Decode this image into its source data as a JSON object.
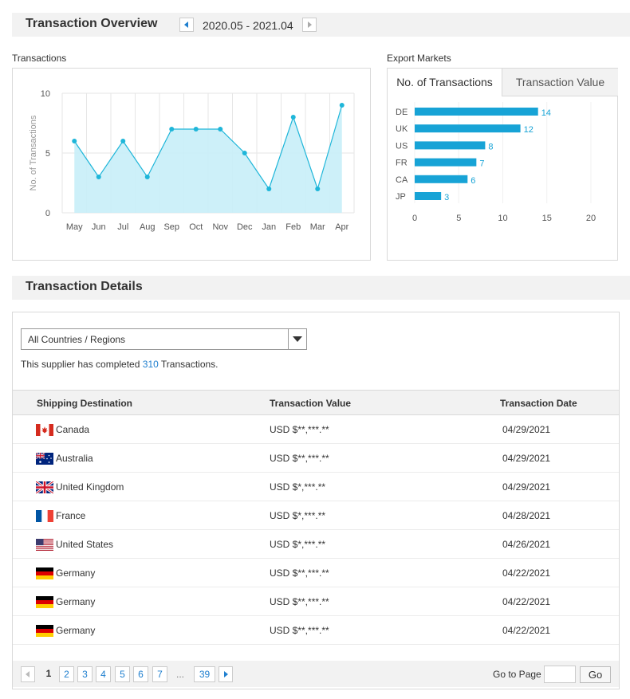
{
  "overview": {
    "title": "Transaction Overview",
    "period": "2020.05 - 2021.04"
  },
  "transactions_panel": {
    "label": "Transactions"
  },
  "export_panel": {
    "label": "Export Markets",
    "tabs": [
      "No. of Transactions",
      "Transaction Value"
    ],
    "active_tab": "No. of Transactions"
  },
  "colors": {
    "accent": "#1f9fcf",
    "area_fill": "#c8eef8",
    "line": "#1fb6d9",
    "bar": "#17a3d6",
    "link": "#1f7fcf"
  },
  "chart_data": [
    {
      "type": "area",
      "categories": [
        "May",
        "Jun",
        "Jul",
        "Aug",
        "Sep",
        "Oct",
        "Nov",
        "Dec",
        "Jan",
        "Feb",
        "Mar",
        "Apr"
      ],
      "values": [
        6,
        3,
        6,
        3,
        7,
        7,
        7,
        5,
        2,
        8,
        2,
        9
      ],
      "ylabel": "No. of Transactions",
      "ylim": [
        0,
        10
      ],
      "yticks": [
        "0",
        "5",
        "10"
      ],
      "grid": true
    },
    {
      "type": "bar",
      "orientation": "horizontal",
      "categories": [
        "DE",
        "UK",
        "US",
        "FR",
        "CA",
        "JP"
      ],
      "values": [
        14,
        12,
        8,
        7,
        6,
        3
      ],
      "xlim": [
        0,
        20
      ],
      "xticks": [
        "0",
        "5",
        "10",
        "15",
        "20"
      ],
      "data_labels": true
    }
  ],
  "details": {
    "title": "Transaction Details",
    "filter_value": "All Countries / Regions",
    "summary_prefix": "This supplier has completed",
    "summary_count": "310",
    "summary_suffix": "Transactions.",
    "columns": [
      "Shipping Destination",
      "Transaction Value",
      "Transaction Date"
    ],
    "rows": [
      {
        "country": "Canada",
        "flag": "canada-flag-icon",
        "value": "USD $**,***.**",
        "date": "04/29/2021"
      },
      {
        "country": "Australia",
        "flag": "australia-flag-icon",
        "value": "USD $**,***.**",
        "date": "04/29/2021"
      },
      {
        "country": "United Kingdom",
        "flag": "uk-flag-icon",
        "value": "USD $*,***.**",
        "date": "04/29/2021"
      },
      {
        "country": "France",
        "flag": "france-flag-icon",
        "value": "USD $*,***.**",
        "date": "04/28/2021"
      },
      {
        "country": "United States",
        "flag": "us-flag-icon",
        "value": "USD $*,***.**",
        "date": "04/26/2021"
      },
      {
        "country": "Germany",
        "flag": "germany-flag-icon",
        "value": "USD $**,***.**",
        "date": "04/22/2021"
      },
      {
        "country": "Germany",
        "flag": "germany-flag-icon",
        "value": "USD $**,***.**",
        "date": "04/22/2021"
      },
      {
        "country": "Germany",
        "flag": "germany-flag-icon",
        "value": "USD $**,***.**",
        "date": "04/22/2021"
      }
    ]
  },
  "pagination": {
    "current": "1",
    "pages": [
      "2",
      "3",
      "4",
      "5",
      "6",
      "7"
    ],
    "ellipsis": "...",
    "last": "39",
    "goto_label": "Go to Page",
    "goto_value": "",
    "go_label": "Go"
  }
}
